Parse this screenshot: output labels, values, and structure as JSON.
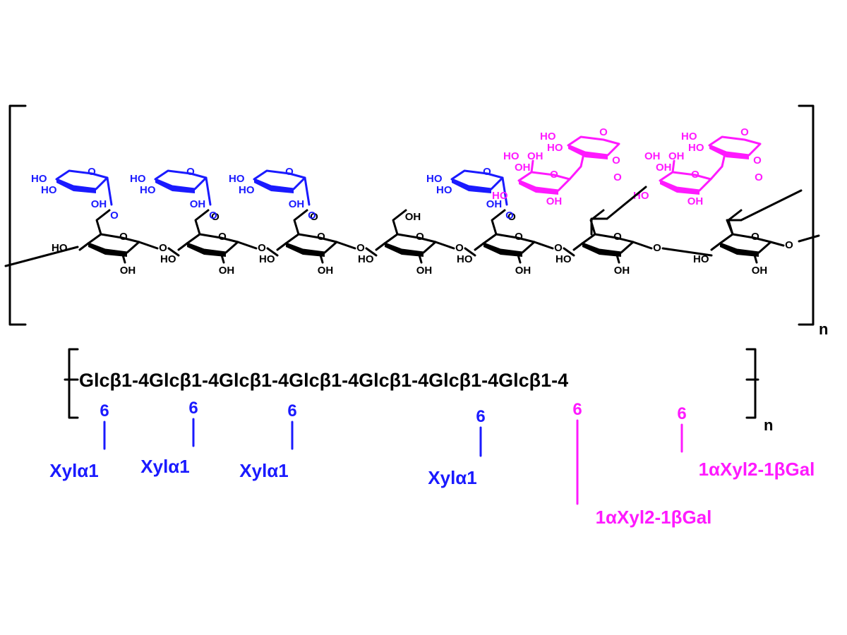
{
  "colors": {
    "backbone": "#000000",
    "xylose": "#1a1aff",
    "galactose_branch": "#ff1aff"
  },
  "structure": {
    "bracket_n": "n",
    "backbone_units": [
      {
        "upper": "HO",
        "right": "O",
        "bottom": "OH",
        "link": "O",
        "bridge": ""
      },
      {
        "upper": "HO",
        "right": "O",
        "bottom": "OH",
        "link": "O",
        "bridge": "O"
      },
      {
        "upper": "HO",
        "right": "O",
        "bottom": "OH",
        "link": "O",
        "bridge": "O"
      },
      {
        "upper": "HO",
        "right": "O",
        "bottom": "OH",
        "link": "O",
        "bridge": "OH"
      },
      {
        "upper": "HO",
        "right": "O",
        "bottom": "OH",
        "link": "O",
        "bridge": "O"
      },
      {
        "upper": "HO",
        "right": "O",
        "bottom": "OH",
        "link": "O",
        "bridge": ""
      },
      {
        "upper": "HO",
        "right": "O",
        "bottom": "OH",
        "link": "O",
        "bridge": ""
      }
    ],
    "xylose_units": [
      {
        "ring_o": "O",
        "ho_top": "HO",
        "ho_bottom": "HO",
        "oh": "OH",
        "glyc_o": "O"
      },
      {
        "ring_o": "O",
        "ho_top": "HO",
        "ho_bottom": "HO",
        "oh": "OH",
        "glyc_o": "O"
      },
      {
        "ring_o": "O",
        "ho_top": "HO",
        "ho_bottom": "HO",
        "oh": "OH",
        "glyc_o": "O"
      },
      {
        "ring_o": "O",
        "ho_top": "HO",
        "ho_bottom": "HO",
        "oh": "OH",
        "glyc_o": "O"
      }
    ],
    "branch_units": [
      {
        "xyl_ho1": "HO",
        "xyl_ho2": "HO",
        "xyl_o": "O",
        "xyl_glyc": "O",
        "xyl_o2": "O",
        "gal_ho": "HO",
        "gal_oh1": "OH",
        "gal_oh2": "OH",
        "gal_o": "O",
        "gal_oh3": "OH",
        "gal_ho2": "HO"
      },
      {
        "xyl_ho1": "HO",
        "xyl_ho2": "HO",
        "xyl_o": "O",
        "xyl_glyc": "O",
        "xyl_o2": "O",
        "gal_ho": "OH",
        "gal_oh1": "OH",
        "gal_oh2": "OH",
        "gal_o": "O",
        "gal_oh3": "OH",
        "gal_ho2": "HO"
      }
    ]
  },
  "sequence": {
    "chain": "Glcβ1-4Glcβ1-4Glcβ1-4Glcβ1-4Glcβ1-4Glcβ1-4Glcβ1-4",
    "repeat_n": "n",
    "substituents": [
      {
        "position": "6",
        "label": "Xylα1",
        "type": "xylose"
      },
      {
        "position": "6",
        "label": "Xylα1",
        "type": "xylose"
      },
      {
        "position": "6",
        "label": "Xylα1",
        "type": "xylose"
      },
      {
        "position": "6",
        "label": "Xylα1",
        "type": "xylose"
      },
      {
        "position": "6",
        "label": "1αXyl2-1βGal",
        "type": "galactose_branch"
      },
      {
        "position": "6",
        "label": "1αXyl2-1βGal",
        "type": "galactose_branch"
      }
    ]
  }
}
